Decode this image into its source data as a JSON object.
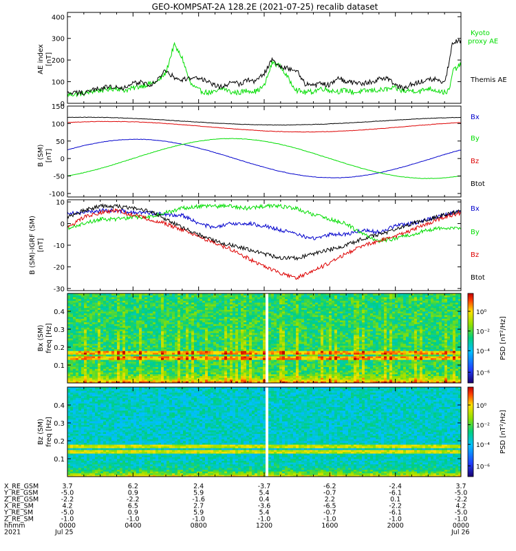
{
  "title": "GEO-KOMPSAT-2A 128.2E (2021-07-25) recalib dataset",
  "colors": {
    "black": "#000000",
    "red": "#dd0000",
    "green": "#00dd00",
    "blue": "#0000cc"
  },
  "chart_data": [
    {
      "type": "line",
      "ylabel": [
        "AE index",
        "[nT]"
      ],
      "ylim": [
        0,
        420
      ],
      "yticks": [
        0,
        100,
        200,
        300,
        400
      ],
      "x_hours": [
        0,
        1,
        1.5,
        2,
        2.5,
        3,
        3.5,
        4,
        4.5,
        5,
        5.5,
        6,
        6.5,
        7,
        7.5,
        8,
        8.5,
        9,
        9.5,
        10,
        10.5,
        11,
        11.5,
        12,
        12.5,
        13,
        13.5,
        14,
        14.5,
        15,
        15.5,
        16,
        16.5,
        17,
        17.5,
        18,
        18.5,
        19,
        19.5,
        20,
        20.5,
        21,
        21.5,
        22,
        22.5,
        23,
        23.3,
        23.5,
        24
      ],
      "series": [
        {
          "name": "Kyoto proxy AE",
          "color": "green",
          "values": [
            40,
            45,
            55,
            60,
            65,
            70,
            60,
            70,
            80,
            90,
            100,
            140,
            270,
            210,
            90,
            60,
            50,
            50,
            70,
            50,
            50,
            60,
            55,
            80,
            190,
            170,
            110,
            60,
            50,
            55,
            70,
            60,
            55,
            60,
            50,
            55,
            60,
            60,
            65,
            70,
            55,
            60,
            55,
            70,
            60,
            50,
            60,
            150,
            180
          ]
        },
        {
          "name": "Themis AE",
          "color": "black",
          "values": [
            45,
            50,
            60,
            70,
            75,
            80,
            70,
            90,
            100,
            80,
            110,
            150,
            120,
            110,
            115,
            120,
            100,
            80,
            75,
            100,
            90,
            110,
            100,
            140,
            200,
            170,
            160,
            150,
            90,
            80,
            90,
            85,
            120,
            100,
            95,
            90,
            100,
            110,
            120,
            80,
            70,
            90,
            100,
            115,
            110,
            90,
            200,
            280,
            290
          ]
        }
      ]
    },
    {
      "type": "line",
      "ylabel": [
        "B (SM)",
        "[nT]"
      ],
      "ylim": [
        -110,
        150
      ],
      "yticks": [
        -100,
        -50,
        0,
        50,
        100,
        150
      ],
      "series": [
        {
          "name": "Bx",
          "color": "blue",
          "form": "cos",
          "amp": 55,
          "offset": 0,
          "peak_hour": 4.2
        },
        {
          "name": "By",
          "color": "green",
          "form": "cos",
          "amp": 57,
          "offset": 0,
          "peak_hour": 10
        },
        {
          "name": "Bz",
          "color": "red",
          "form": "cos",
          "amp": 15,
          "offset": 91,
          "peak_hour": 2.5
        },
        {
          "name": "Btot",
          "color": "black",
          "form": "cos",
          "amp": 11,
          "offset": 107,
          "peak_hour": 1
        }
      ]
    },
    {
      "type": "line",
      "ylabel": [
        "B (SM)-IGRF (SM)",
        "[nT]"
      ],
      "ylim": [
        -31,
        11
      ],
      "yticks": [
        -30,
        -20,
        -10,
        0,
        10
      ],
      "x_hours": [
        0,
        1,
        2,
        3,
        4,
        5,
        6,
        7,
        8,
        9,
        10,
        11,
        12,
        13,
        14,
        15,
        16,
        17,
        18,
        19,
        20,
        21,
        22,
        23,
        24
      ],
      "series": [
        {
          "name": "Bx",
          "color": "blue",
          "values": [
            5,
            5,
            6,
            6,
            5,
            5,
            4,
            4,
            0,
            -2,
            0,
            0,
            -1,
            -3,
            -5,
            -7,
            -5,
            -5,
            -3,
            -4,
            -1,
            0,
            2,
            4,
            6
          ]
        },
        {
          "name": "By",
          "color": "green",
          "values": [
            -2,
            0,
            2,
            2,
            3,
            3,
            5,
            7,
            8,
            8,
            8,
            7,
            8,
            8,
            7,
            4,
            2,
            0,
            -5,
            -8,
            -7,
            -5,
            -3,
            -2,
            -2
          ]
        },
        {
          "name": "Bz",
          "color": "red",
          "values": [
            -2,
            3,
            5,
            6,
            4,
            2,
            0,
            -3,
            -6,
            -9,
            -12,
            -16,
            -20,
            -23,
            -25,
            -22,
            -18,
            -14,
            -10,
            -8,
            -6,
            -3,
            0,
            3,
            5
          ]
        },
        {
          "name": "Btot",
          "color": "black",
          "values": [
            3,
            6,
            8,
            8,
            7,
            6,
            2,
            -2,
            -5,
            -8,
            -10,
            -12,
            -14,
            -16,
            -16,
            -14,
            -12,
            -10,
            -7,
            -5,
            -3,
            0,
            2,
            4,
            6
          ]
        }
      ]
    },
    {
      "type": "heatmap",
      "ylabel": [
        "Bx (SM)",
        "freq [Hz]"
      ],
      "ylim": [
        0,
        0.5
      ],
      "yticks": [
        0.1,
        0.2,
        0.3,
        0.4
      ],
      "colorbar_label": "PSD [nT²/Hz]",
      "colorbar_ticks": [
        "10⁰",
        "10⁻²",
        "10⁻⁴",
        "10⁻⁶"
      ],
      "data_gap_hour": 12.2,
      "lines_hz": [
        0.14,
        0.17
      ]
    },
    {
      "type": "heatmap",
      "ylabel": [
        "Bz (SM)",
        "freq [Hz]"
      ],
      "ylim": [
        0,
        0.5
      ],
      "yticks": [
        0.1,
        0.2,
        0.3,
        0.4
      ],
      "colorbar_label": "PSD [nT²/Hz]",
      "colorbar_ticks": [
        "10⁰",
        "10⁻²",
        "10⁻⁴",
        "10⁻⁶"
      ],
      "data_gap_hour": 12.2,
      "lines_hz": [
        0.14,
        0.17
      ]
    }
  ],
  "labels": {
    "kyoto": [
      "Kyoto",
      "proxy AE"
    ],
    "themis": "Themis AE",
    "b_legend": [
      "Bx",
      "By",
      "Bz",
      "Btot"
    ],
    "db_legend": [
      "Bx",
      "By",
      "Bz",
      "Btot"
    ]
  },
  "ephemeris": {
    "row_labels": [
      "X_RE_GSM",
      "Y_RE_GSM",
      "Z_RE_GSM",
      "X_RE_SM",
      "Y_RE_SM",
      "Z_RE_SM",
      "hhmm",
      "2021"
    ],
    "columns": [
      [
        "3.7",
        "-5.0",
        "-2.2",
        "4.2",
        "-5.0",
        "-1.0",
        "0000",
        "Jul 25"
      ],
      [
        "6.2",
        "0.9",
        "-2.2",
        "6.5",
        "0.9",
        "-1.0",
        "0400",
        ""
      ],
      [
        "2.4",
        "5.9",
        "-1.6",
        "2.7",
        "5.9",
        "-1.0",
        "0800",
        ""
      ],
      [
        "-3.7",
        "5.4",
        "0.4",
        "-3.6",
        "5.4",
        "-1.0",
        "1200",
        ""
      ],
      [
        "-6.2",
        "-0.7",
        "2.2",
        "-6.5",
        "-0.7",
        "-1.0",
        "1600",
        ""
      ],
      [
        "-2.4",
        "-6.1",
        "0.1",
        "-2.2",
        "-6.1",
        "-1.0",
        "2000",
        ""
      ],
      [
        "3.7",
        "-5.0",
        "-2.2",
        "4.2",
        "-5.0",
        "-1.0",
        "0000",
        "Jul 26"
      ]
    ]
  }
}
